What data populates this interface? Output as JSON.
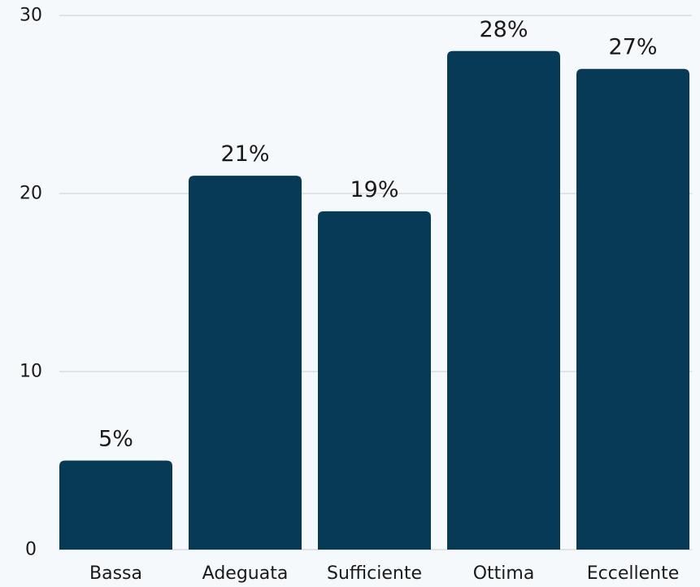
{
  "chart_data": {
    "type": "bar",
    "title": "",
    "xlabel": "",
    "ylabel": "",
    "categories": [
      "Bassa",
      "Adeguata",
      "Sufficiente",
      "Ottima",
      "Eccellente"
    ],
    "values": [
      5,
      21,
      19,
      28,
      27
    ],
    "data_labels": [
      "5%",
      "21%",
      "19%",
      "28%",
      "27%"
    ],
    "ylim": [
      0,
      30
    ],
    "yticks": [
      0,
      10,
      20,
      30
    ],
    "ytick_labels": [
      "0",
      "10",
      "20",
      "30"
    ],
    "grid": true,
    "legend": "none",
    "colors": {
      "bar": "#073b55",
      "background": "#f5f9fc",
      "grid": "#c9cdd1",
      "text": "#1a1a1a"
    }
  }
}
